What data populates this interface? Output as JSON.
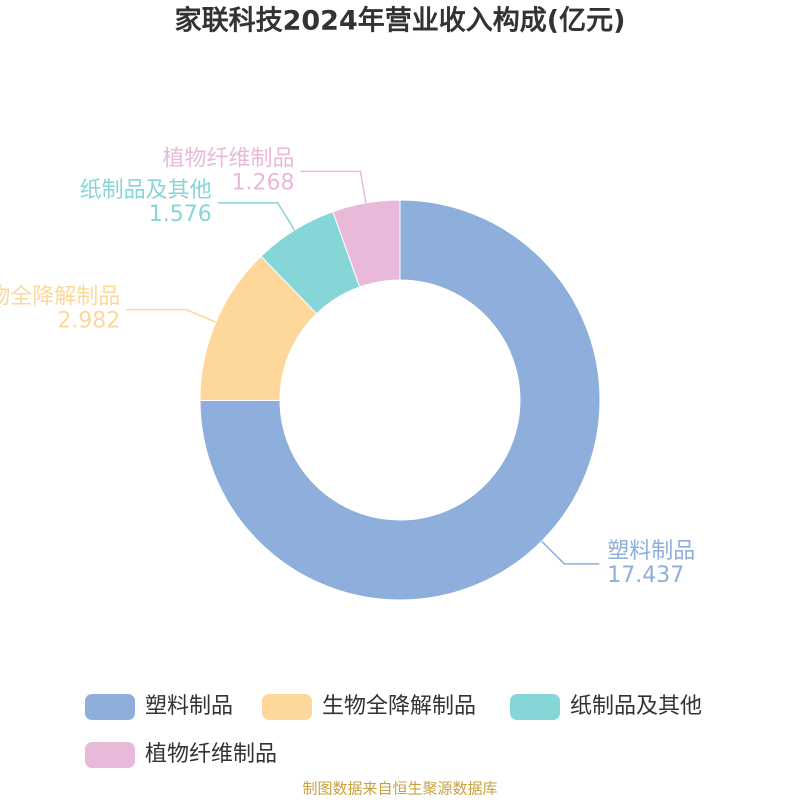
{
  "chart_data": {
    "type": "donut",
    "title": "家联科技2024年营业收入构成(亿元)",
    "categories": [
      "塑料制品",
      "生物全降解制品",
      "纸制品及其他",
      "植物纤维制品"
    ],
    "values": [
      17.437,
      2.982,
      1.576,
      1.268
    ],
    "colors": [
      "#8eaedb",
      "#fdd89a",
      "#86d6d8",
      "#e9b9da"
    ],
    "footer": "制图数据来自恒生聚源数据库"
  }
}
